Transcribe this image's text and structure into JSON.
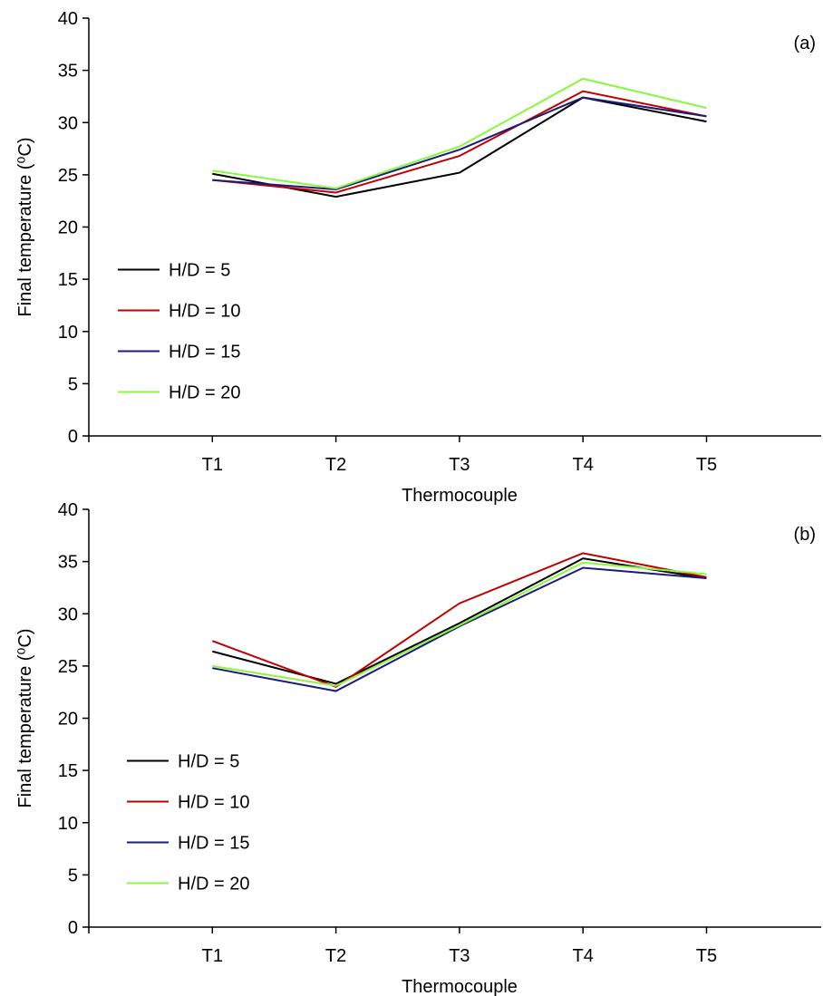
{
  "chart_data": [
    {
      "type": "line",
      "panel_label": "(a)",
      "xlabel": "Thermocouple",
      "ylabel": "Final temperature (⁰C)",
      "categories": [
        "T1",
        "T2",
        "T3",
        "T4",
        "T5"
      ],
      "ylim": [
        0,
        40
      ],
      "yticks": [
        0,
        5,
        10,
        15,
        20,
        25,
        30,
        35,
        40
      ],
      "legend": "center left",
      "series": [
        {
          "name": "H/D = 5",
          "color": "#000000",
          "values": [
            25.1,
            22.9,
            25.2,
            32.4,
            30.1
          ]
        },
        {
          "name": "H/D = 10",
          "color": "#c00000",
          "values": [
            24.5,
            23.3,
            26.8,
            33.0,
            30.6
          ]
        },
        {
          "name": "H/D = 15",
          "color": "#1c1c7a",
          "values": [
            24.5,
            23.6,
            27.4,
            32.4,
            30.6
          ]
        },
        {
          "name": "H/D = 20",
          "color": "#88f83c",
          "values": [
            25.4,
            23.7,
            27.7,
            34.2,
            31.4
          ]
        }
      ]
    },
    {
      "type": "line",
      "panel_label": "(b)",
      "xlabel": "Thermocouple",
      "ylabel": "Final temperature (⁰C)",
      "categories": [
        "T1",
        "T2",
        "T3",
        "T4",
        "T5"
      ],
      "ylim": [
        0,
        40
      ],
      "yticks": [
        0,
        5,
        10,
        15,
        20,
        25,
        30,
        35,
        40
      ],
      "legend": "center left",
      "series": [
        {
          "name": "H/D = 5",
          "color": "#000000",
          "values": [
            26.4,
            23.3,
            29.1,
            35.3,
            33.4
          ]
        },
        {
          "name": "H/D = 10",
          "color": "#c00000",
          "values": [
            27.4,
            23.0,
            31.0,
            35.8,
            33.5
          ]
        },
        {
          "name": "H/D = 15",
          "color": "#1c1c7a",
          "values": [
            24.8,
            22.6,
            28.8,
            34.4,
            33.4
          ]
        },
        {
          "name": "H/D = 20",
          "color": "#88f83c",
          "values": [
            25.0,
            23.1,
            28.9,
            34.9,
            33.8
          ]
        }
      ]
    }
  ]
}
